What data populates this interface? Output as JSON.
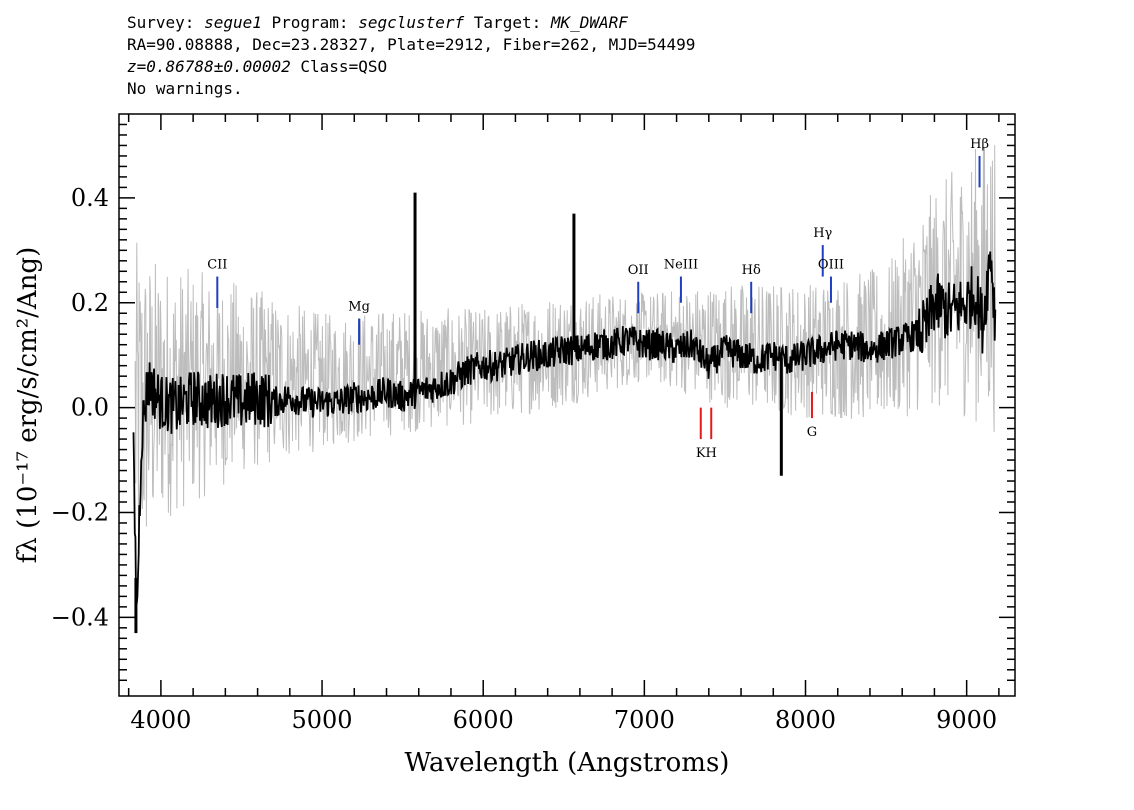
{
  "header": {
    "survey_label": "Survey: ",
    "survey": "segue1",
    "program_label": " Program: ",
    "program": "segclusterf",
    "target_label": " Target: ",
    "target": "MK_DWARF",
    "line2": "RA=90.08888, Dec=23.28327, Plate=2912, Fiber=262, MJD=54499",
    "z_text": "z=0.86788±0.00002",
    "class_text": " Class=QSO",
    "warnings": "No warnings."
  },
  "chart_data": {
    "type": "line",
    "xlabel": "Wavelength (Angstroms)",
    "ylabel": "fλ (10⁻¹⁷ erg/s/cm²/Ang)",
    "xlim": [
      3740,
      9300
    ],
    "ylim": [
      -0.55,
      0.56
    ],
    "xticks": [
      4000,
      5000,
      6000,
      7000,
      8000,
      9000
    ],
    "xtick_labels": [
      "4000",
      "5000",
      "6000",
      "7000",
      "8000",
      "9000"
    ],
    "yticks": [
      -0.4,
      -0.2,
      0.0,
      0.2,
      0.4
    ],
    "ytick_labels": [
      "−0.4",
      "−0.2",
      "0.0",
      "0.2",
      "0.4"
    ],
    "grid": false,
    "series": [
      {
        "role": "error band",
        "color": "#bdbdbd",
        "x": [
          3840,
          4000,
          4500,
          5000,
          5500,
          6000,
          6500,
          7000,
          7500,
          8000,
          8500,
          8800,
          9000,
          9180
        ],
        "low": [
          -0.35,
          -0.22,
          -0.13,
          -0.08,
          -0.05,
          -0.03,
          0.0,
          0.05,
          0.0,
          -0.02,
          -0.03,
          0.0,
          -0.02,
          -0.05
        ],
        "high": [
          0.32,
          0.28,
          0.24,
          0.18,
          0.19,
          0.19,
          0.22,
          0.22,
          0.24,
          0.24,
          0.27,
          0.42,
          0.48,
          0.55
        ]
      },
      {
        "role": "flux",
        "color": "#000000",
        "x": [
          3830,
          3850,
          3880,
          3920,
          4000,
          4100,
          4200,
          4300,
          4400,
          4500,
          4600,
          4700,
          4800,
          4900,
          5000,
          5100,
          5200,
          5300,
          5400,
          5500,
          5600,
          5700,
          5800,
          5900,
          6000,
          6100,
          6200,
          6300,
          6400,
          6500,
          6600,
          6700,
          6800,
          6900,
          7000,
          7100,
          7200,
          7300,
          7400,
          7500,
          7600,
          7700,
          7800,
          7900,
          8000,
          8100,
          8200,
          8300,
          8400,
          8500,
          8600,
          8700,
          8750,
          8800,
          8900,
          9000,
          9050,
          9100,
          9150,
          9180
        ],
        "y": [
          -0.1,
          -0.4,
          -0.05,
          0.05,
          0.01,
          0.0,
          0.02,
          0.01,
          0.02,
          0.01,
          0.02,
          0.01,
          0.02,
          0.01,
          0.01,
          0.01,
          0.02,
          0.02,
          0.03,
          0.02,
          0.03,
          0.04,
          0.05,
          0.07,
          0.08,
          0.08,
          0.09,
          0.1,
          0.1,
          0.11,
          0.11,
          0.12,
          0.12,
          0.13,
          0.12,
          0.12,
          0.11,
          0.12,
          0.08,
          0.11,
          0.1,
          0.09,
          0.1,
          0.09,
          0.1,
          0.11,
          0.12,
          0.12,
          0.11,
          0.12,
          0.13,
          0.14,
          0.15,
          0.2,
          0.18,
          0.2,
          0.22,
          0.16,
          0.3,
          0.15
        ],
        "spikes": [
          {
            "x": 5577,
            "y": 0.41
          },
          {
            "x": 6563,
            "y": 0.37
          },
          {
            "x": 7850,
            "y": -0.13
          },
          {
            "x": 3845,
            "y": -0.43
          }
        ]
      }
    ],
    "line_markers": [
      {
        "label": "CII",
        "x": 4350,
        "color": "#1f3fbf",
        "y1": 0.19,
        "y2": 0.25
      },
      {
        "label": "Mg",
        "x": 5230,
        "color": "#1f3fbf",
        "y1": 0.12,
        "y2": 0.17
      },
      {
        "label": "OII",
        "x": 6962,
        "color": "#1f3fbf",
        "y1": 0.18,
        "y2": 0.24
      },
      {
        "label": "NeIII",
        "x": 7227,
        "color": "#1f3fbf",
        "y1": 0.2,
        "y2": 0.25
      },
      {
        "label": "Hδ",
        "x": 7663,
        "color": "#1f3fbf",
        "y1": 0.18,
        "y2": 0.24
      },
      {
        "label": "Hγ",
        "x": 8107,
        "color": "#1f3fbf",
        "y1": 0.25,
        "y2": 0.31
      },
      {
        "label": "OIII",
        "x": 8158,
        "color": "#1f3fbf",
        "y1": 0.2,
        "y2": 0.25
      },
      {
        "label": "Hβ",
        "x": 9080,
        "color": "#1f3fbf",
        "y1": 0.42,
        "y2": 0.48
      },
      {
        "label": "K",
        "x": 7350,
        "color": "#e31a1c",
        "y1": -0.06,
        "y2": 0.0,
        "below": true
      },
      {
        "label": "H",
        "x": 7415,
        "color": "#e31a1c",
        "y1": -0.06,
        "y2": 0.0,
        "below": true
      },
      {
        "label": "G",
        "x": 8040,
        "color": "#e31a1c",
        "y1": -0.02,
        "y2": 0.03,
        "below": true
      }
    ]
  }
}
